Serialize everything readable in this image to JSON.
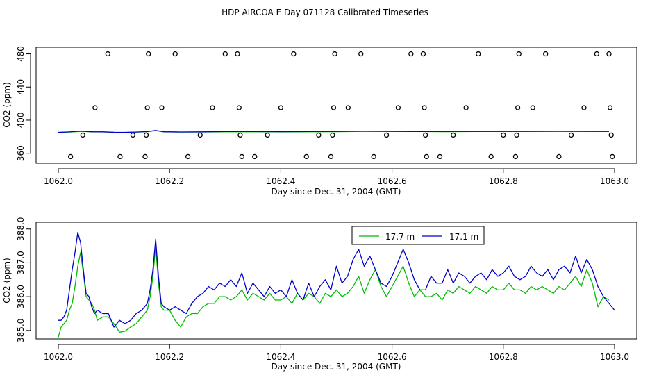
{
  "title": "HDP AIRCOA E  Day 071128  Calibrated Timeseries",
  "colors": {
    "green": "#00bb00",
    "blue": "#0000cc",
    "axis": "#000000"
  },
  "chart_data": [
    {
      "type": "scatter",
      "xlabel": "Day since Dec. 31, 2004 (GMT)",
      "ylabel": "CO2 (ppm)",
      "xlim": [
        1062.0,
        1063.0
      ],
      "ylim": [
        348,
        488
      ],
      "x_ticks": [
        "1062.0",
        "1062.2",
        "1062.4",
        "1062.6",
        "1062.8",
        "1063.0"
      ],
      "y_ticks": [
        "360",
        "400",
        "440",
        "480"
      ],
      "grid": false,
      "series": [
        {
          "kind": "points",
          "x": [
            1062.022,
            1062.044,
            1062.066,
            1062.089,
            1062.111,
            1062.134,
            1062.156,
            1062.158,
            1062.16,
            1062.162,
            1062.186,
            1062.21,
            1062.233,
            1062.255,
            1062.277,
            1062.3,
            1062.322,
            1062.325,
            1062.327,
            1062.33,
            1062.353,
            1062.376,
            1062.4,
            1062.423,
            1062.446,
            1062.468,
            1062.49,
            1062.493,
            1062.495,
            1062.497,
            1062.521,
            1062.544,
            1062.567,
            1062.59,
            1062.611,
            1062.634,
            1062.656,
            1062.658,
            1062.66,
            1062.662,
            1062.686,
            1062.71,
            1062.733,
            1062.755,
            1062.778,
            1062.8,
            1062.822,
            1062.824,
            1062.826,
            1062.828,
            1062.853,
            1062.876,
            1062.9,
            1062.922,
            1062.945,
            1062.968,
            1062.99,
            1062.992,
            1062.994,
            1062.996
          ],
          "y": [
            356,
            382,
            415,
            480,
            356,
            382,
            356,
            382,
            415,
            480,
            415,
            480,
            356,
            382,
            415,
            480,
            480,
            415,
            382,
            356,
            356,
            382,
            415,
            480,
            356,
            382,
            356,
            382,
            415,
            480,
            415,
            480,
            356,
            382,
            415,
            480,
            480,
            415,
            382,
            356,
            356,
            382,
            415,
            480,
            356,
            382,
            356,
            382,
            415,
            480,
            415,
            480,
            356,
            382,
            415,
            480,
            480,
            415,
            382,
            356
          ]
        },
        {
          "kind": "line",
          "color": "#00bb00",
          "x": [
            1062.0,
            1062.02,
            1062.04,
            1062.06,
            1062.08,
            1062.1,
            1062.12,
            1062.14,
            1062.16,
            1062.175,
            1062.19,
            1062.22,
            1062.26,
            1062.3,
            1062.35,
            1062.4,
            1062.45,
            1062.5,
            1062.55,
            1062.6,
            1062.65,
            1062.7,
            1062.75,
            1062.8,
            1062.85,
            1062.9,
            1062.95,
            1062.99
          ],
          "y": [
            385.2,
            385.6,
            386.4,
            385.9,
            385.8,
            385.3,
            385.2,
            385.6,
            386.1,
            387.4,
            385.9,
            385.6,
            385.7,
            386.0,
            386.0,
            385.9,
            386.0,
            386.1,
            386.4,
            386.3,
            386.2,
            386.1,
            386.2,
            386.2,
            386.3,
            386.4,
            386.3,
            386.2
          ]
        },
        {
          "kind": "line",
          "color": "#0000cc",
          "x": [
            1062.0,
            1062.02,
            1062.04,
            1062.06,
            1062.08,
            1062.1,
            1062.12,
            1062.14,
            1062.16,
            1062.175,
            1062.19,
            1062.22,
            1062.26,
            1062.3,
            1062.35,
            1062.4,
            1062.45,
            1062.5,
            1062.55,
            1062.6,
            1062.65,
            1062.7,
            1062.75,
            1062.8,
            1062.85,
            1062.9,
            1062.95,
            1062.99
          ],
          "y": [
            385.3,
            385.8,
            386.9,
            386.0,
            385.9,
            385.4,
            385.3,
            385.6,
            386.2,
            387.6,
            386.0,
            385.7,
            385.9,
            386.2,
            386.2,
            386.1,
            386.2,
            386.4,
            386.8,
            386.6,
            386.3,
            386.4,
            386.5,
            386.5,
            386.6,
            386.7,
            386.6,
            386.5
          ]
        }
      ]
    },
    {
      "type": "line",
      "xlabel": "Day since Dec. 31, 2004 (GMT)",
      "ylabel": "CO2 (ppm)",
      "xlim": [
        1062.0,
        1063.0
      ],
      "ylim": [
        384.75,
        388.2
      ],
      "x_ticks": [
        "1062.0",
        "1062.2",
        "1062.4",
        "1062.6",
        "1062.8",
        "1063.0"
      ],
      "y_ticks": [
        "385.0",
        "386.0",
        "387.0",
        "388.0"
      ],
      "grid": false,
      "legend": {
        "placement": "top-right"
      },
      "series": [
        {
          "name": "17.7 m",
          "color": "#00bb00",
          "x": [
            1062.0,
            1062.005,
            1062.01,
            1062.015,
            1062.02,
            1062.025,
            1062.03,
            1062.035,
            1062.04,
            1062.045,
            1062.05,
            1062.055,
            1062.06,
            1062.065,
            1062.07,
            1062.08,
            1062.09,
            1062.1,
            1062.11,
            1062.12,
            1062.13,
            1062.14,
            1062.15,
            1062.16,
            1062.165,
            1062.17,
            1062.175,
            1062.18,
            1062.185,
            1062.19,
            1062.2,
            1062.21,
            1062.22,
            1062.23,
            1062.24,
            1062.25,
            1062.26,
            1062.27,
            1062.28,
            1062.29,
            1062.3,
            1062.31,
            1062.32,
            1062.33,
            1062.34,
            1062.35,
            1062.36,
            1062.37,
            1062.38,
            1062.39,
            1062.4,
            1062.41,
            1062.42,
            1062.43,
            1062.44,
            1062.45,
            1062.46,
            1062.47,
            1062.48,
            1062.49,
            1062.5,
            1062.51,
            1062.52,
            1062.53,
            1062.54,
            1062.55,
            1062.56,
            1062.57,
            1062.58,
            1062.59,
            1062.6,
            1062.61,
            1062.62,
            1062.63,
            1062.64,
            1062.65,
            1062.66,
            1062.67,
            1062.68,
            1062.69,
            1062.7,
            1062.71,
            1062.72,
            1062.73,
            1062.74,
            1062.75,
            1062.76,
            1062.77,
            1062.78,
            1062.79,
            1062.8,
            1062.81,
            1062.82,
            1062.83,
            1062.84,
            1062.85,
            1062.86,
            1062.87,
            1062.88,
            1062.89,
            1062.9,
            1062.91,
            1062.92,
            1062.93,
            1062.94,
            1062.95,
            1062.96,
            1062.97,
            1062.98,
            1062.99
          ],
          "y": [
            384.8,
            385.1,
            385.2,
            385.3,
            385.6,
            385.8,
            386.3,
            386.9,
            387.3,
            386.7,
            386.0,
            385.9,
            385.8,
            385.6,
            385.3,
            385.4,
            385.4,
            385.2,
            384.95,
            384.98,
            385.1,
            385.2,
            385.4,
            385.6,
            386.0,
            386.6,
            387.5,
            386.4,
            385.7,
            385.6,
            385.6,
            385.3,
            385.1,
            385.4,
            385.5,
            385.5,
            385.7,
            385.8,
            385.8,
            386.0,
            386.0,
            385.9,
            386.0,
            386.2,
            385.9,
            386.1,
            386.0,
            385.9,
            386.1,
            385.9,
            385.9,
            386.0,
            385.8,
            386.1,
            385.9,
            386.1,
            386.0,
            385.8,
            386.1,
            386.0,
            386.2,
            386.0,
            386.1,
            386.3,
            386.6,
            386.1,
            386.5,
            386.8,
            386.3,
            386.0,
            386.3,
            386.6,
            386.9,
            386.4,
            386.0,
            386.2,
            386.0,
            386.0,
            386.1,
            385.9,
            386.2,
            386.1,
            386.3,
            386.2,
            386.1,
            386.3,
            386.2,
            386.1,
            386.3,
            386.2,
            386.2,
            386.4,
            386.2,
            386.2,
            386.1,
            386.3,
            386.2,
            386.3,
            386.2,
            386.1,
            386.3,
            386.2,
            386.4,
            386.6,
            386.3,
            386.8,
            386.4,
            385.7,
            386.0,
            385.9
          ]
        },
        {
          "name": "17.1 m",
          "color": "#0000cc",
          "x": [
            1062.0,
            1062.005,
            1062.01,
            1062.015,
            1062.02,
            1062.025,
            1062.03,
            1062.035,
            1062.04,
            1062.045,
            1062.05,
            1062.055,
            1062.06,
            1062.065,
            1062.07,
            1062.08,
            1062.09,
            1062.1,
            1062.11,
            1062.12,
            1062.13,
            1062.14,
            1062.15,
            1062.16,
            1062.165,
            1062.17,
            1062.175,
            1062.18,
            1062.185,
            1062.19,
            1062.2,
            1062.21,
            1062.22,
            1062.23,
            1062.24,
            1062.25,
            1062.26,
            1062.27,
            1062.28,
            1062.29,
            1062.3,
            1062.31,
            1062.32,
            1062.33,
            1062.34,
            1062.35,
            1062.36,
            1062.37,
            1062.38,
            1062.39,
            1062.4,
            1062.41,
            1062.42,
            1062.43,
            1062.44,
            1062.45,
            1062.46,
            1062.47,
            1062.48,
            1062.49,
            1062.5,
            1062.51,
            1062.52,
            1062.53,
            1062.54,
            1062.55,
            1062.56,
            1062.57,
            1062.58,
            1062.59,
            1062.6,
            1062.61,
            1062.62,
            1062.63,
            1062.64,
            1062.65,
            1062.66,
            1062.67,
            1062.68,
            1062.69,
            1062.7,
            1062.71,
            1062.72,
            1062.73,
            1062.74,
            1062.75,
            1062.76,
            1062.77,
            1062.78,
            1062.79,
            1062.8,
            1062.81,
            1062.82,
            1062.83,
            1062.84,
            1062.85,
            1062.86,
            1062.87,
            1062.88,
            1062.89,
            1062.9,
            1062.91,
            1062.92,
            1062.93,
            1062.94,
            1062.95,
            1062.96,
            1062.97,
            1062.98,
            1062.99,
            1063.0
          ],
          "y": [
            385.3,
            385.3,
            385.4,
            385.6,
            386.2,
            386.8,
            387.3,
            387.9,
            387.6,
            386.8,
            386.1,
            386.0,
            385.7,
            385.5,
            385.6,
            385.5,
            385.5,
            385.1,
            385.3,
            385.2,
            385.3,
            385.5,
            385.6,
            385.8,
            386.2,
            386.8,
            387.7,
            386.6,
            385.8,
            385.7,
            385.6,
            385.7,
            385.6,
            385.5,
            385.8,
            386.0,
            386.1,
            386.3,
            386.2,
            386.4,
            386.3,
            386.5,
            386.3,
            386.7,
            386.1,
            386.4,
            386.2,
            386.0,
            386.3,
            386.1,
            386.2,
            386.0,
            386.5,
            386.1,
            385.9,
            386.4,
            386.0,
            386.3,
            386.5,
            386.2,
            386.9,
            386.4,
            386.6,
            387.1,
            387.4,
            386.9,
            387.2,
            386.8,
            386.4,
            386.3,
            386.6,
            387.0,
            387.4,
            387.0,
            386.5,
            386.2,
            386.2,
            386.6,
            386.4,
            386.4,
            386.8,
            386.4,
            386.7,
            386.6,
            386.4,
            386.6,
            386.7,
            386.5,
            386.8,
            386.6,
            386.7,
            386.9,
            386.6,
            386.5,
            386.6,
            386.9,
            386.7,
            386.6,
            386.8,
            386.5,
            386.8,
            386.9,
            386.7,
            387.2,
            386.7,
            387.1,
            386.8,
            386.3,
            386.0,
            385.8,
            385.6
          ]
        }
      ]
    }
  ]
}
